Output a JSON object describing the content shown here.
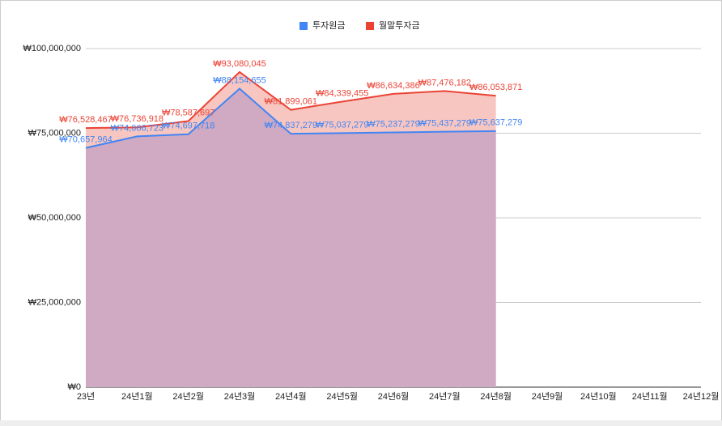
{
  "chart_data": {
    "type": "area",
    "categories": [
      "23년",
      "24년1월",
      "24년2월",
      "24년3월",
      "24년4월",
      "24년5월",
      "24년6월",
      "24년7월",
      "24년8월",
      "24년9월",
      "24년10월",
      "24년11월",
      "24년12월"
    ],
    "series": [
      {
        "name": "투자원금",
        "color": "#4285f4",
        "values": [
          70657964,
          74066723,
          74697718,
          88154655,
          74837279,
          75037279,
          75237279,
          75437279,
          75637279,
          null,
          null,
          null,
          null
        ],
        "value_labels": [
          "₩70,657,964",
          "₩74,066,723",
          "₩74,697,718",
          "₩88,154,655",
          "₩74,837,279",
          "₩75,037,279",
          "₩75,237,279",
          "₩75,437,279",
          "₩75,637,279",
          null,
          null,
          null,
          null
        ]
      },
      {
        "name": "월말투자금",
        "color": "#ea4335",
        "values": [
          76528467,
          76736918,
          78587697,
          93080045,
          81899061,
          84339455,
          86634386,
          87476182,
          86053871,
          null,
          null,
          null,
          null
        ],
        "value_labels": [
          "₩76,528,467",
          "₩76,736,918",
          "₩78,587,697",
          "₩93,080,045",
          "₩81,899,061",
          "₩84,339,455",
          "₩86,634,386",
          "₩87,476,182",
          "₩86,053,871",
          null,
          null,
          null,
          null
        ]
      }
    ],
    "ylim": [
      0,
      100000000
    ],
    "yticks": [
      {
        "value": 0,
        "label": "₩0"
      },
      {
        "value": 25000000,
        "label": "₩25,000,000"
      },
      {
        "value": 50000000,
        "label": "₩50,000,000"
      },
      {
        "value": 75000000,
        "label": "₩75,000,000"
      },
      {
        "value": 100000000,
        "label": "₩100,000,000"
      }
    ],
    "grid": true,
    "legend": "top"
  }
}
